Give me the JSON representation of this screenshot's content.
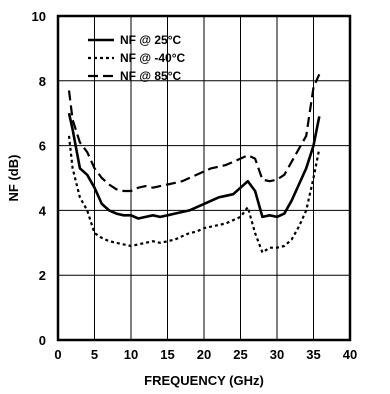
{
  "chart_data": {
    "type": "line",
    "title": "",
    "xlabel": "FREQUENCY (GHz)",
    "ylabel": "NF (dB)",
    "xlim": [
      0,
      40
    ],
    "ylim": [
      0,
      10
    ],
    "xticks": [
      "0",
      "5",
      "10",
      "15",
      "20",
      "25",
      "30",
      "35",
      "40"
    ],
    "yticks": [
      "0",
      "2",
      "4",
      "6",
      "8",
      "10"
    ],
    "grid": true,
    "legend_position": "top-left",
    "series": [
      {
        "name": "NF @ 25°C",
        "style": "solid",
        "color": "#000000",
        "points": [
          [
            1.5,
            7.0
          ],
          [
            2,
            6.5
          ],
          [
            3,
            5.3
          ],
          [
            4,
            5.1
          ],
          [
            5,
            4.7
          ],
          [
            6,
            4.2
          ],
          [
            7,
            4.0
          ],
          [
            8,
            3.9
          ],
          [
            9,
            3.85
          ],
          [
            10,
            3.85
          ],
          [
            11,
            3.75
          ],
          [
            12,
            3.8
          ],
          [
            13,
            3.85
          ],
          [
            14,
            3.8
          ],
          [
            15,
            3.85
          ],
          [
            16,
            3.9
          ],
          [
            17,
            3.95
          ],
          [
            18,
            4.0
          ],
          [
            19,
            4.1
          ],
          [
            20,
            4.2
          ],
          [
            21,
            4.3
          ],
          [
            22,
            4.4
          ],
          [
            23,
            4.45
          ],
          [
            24,
            4.5
          ],
          [
            25,
            4.7
          ],
          [
            26,
            4.9
          ],
          [
            27,
            4.6
          ],
          [
            28,
            3.8
          ],
          [
            29,
            3.85
          ],
          [
            30,
            3.8
          ],
          [
            31,
            3.9
          ],
          [
            32,
            4.3
          ],
          [
            33,
            4.8
          ],
          [
            34,
            5.3
          ],
          [
            35,
            6.0
          ],
          [
            35.8,
            6.9
          ]
        ]
      },
      {
        "name": "NF @ -40°C",
        "style": "dotted",
        "color": "#000000",
        "points": [
          [
            1.5,
            6.3
          ],
          [
            2,
            5.3
          ],
          [
            3,
            4.4
          ],
          [
            4,
            4.0
          ],
          [
            5,
            3.3
          ],
          [
            6,
            3.15
          ],
          [
            7,
            3.05
          ],
          [
            8,
            3.0
          ],
          [
            9,
            2.95
          ],
          [
            10,
            2.9
          ],
          [
            11,
            2.95
          ],
          [
            12,
            3.0
          ],
          [
            13,
            3.05
          ],
          [
            14,
            3.0
          ],
          [
            15,
            3.05
          ],
          [
            16,
            3.1
          ],
          [
            17,
            3.2
          ],
          [
            18,
            3.3
          ],
          [
            19,
            3.35
          ],
          [
            20,
            3.45
          ],
          [
            21,
            3.5
          ],
          [
            22,
            3.55
          ],
          [
            23,
            3.6
          ],
          [
            24,
            3.7
          ],
          [
            25,
            3.8
          ],
          [
            26,
            4.1
          ],
          [
            27,
            3.3
          ],
          [
            28,
            2.7
          ],
          [
            29,
            2.85
          ],
          [
            30,
            2.85
          ],
          [
            31,
            2.9
          ],
          [
            32,
            3.1
          ],
          [
            33,
            3.5
          ],
          [
            34,
            4.0
          ],
          [
            35,
            5.0
          ],
          [
            35.8,
            5.9
          ]
        ]
      },
      {
        "name": "NF @ 85°C",
        "style": "dashed",
        "color": "#000000",
        "points": [
          [
            1.5,
            7.7
          ],
          [
            2,
            6.8
          ],
          [
            3,
            6.1
          ],
          [
            4,
            5.8
          ],
          [
            5,
            5.3
          ],
          [
            6,
            5.0
          ],
          [
            7,
            4.8
          ],
          [
            8,
            4.65
          ],
          [
            9,
            4.6
          ],
          [
            10,
            4.6
          ],
          [
            11,
            4.7
          ],
          [
            12,
            4.75
          ],
          [
            13,
            4.7
          ],
          [
            14,
            4.75
          ],
          [
            15,
            4.8
          ],
          [
            16,
            4.85
          ],
          [
            17,
            4.9
          ],
          [
            18,
            5.0
          ],
          [
            19,
            5.1
          ],
          [
            20,
            5.2
          ],
          [
            21,
            5.3
          ],
          [
            22,
            5.35
          ],
          [
            23,
            5.4
          ],
          [
            24,
            5.5
          ],
          [
            25,
            5.6
          ],
          [
            26,
            5.7
          ],
          [
            27,
            5.6
          ],
          [
            28,
            4.95
          ],
          [
            29,
            4.9
          ],
          [
            30,
            4.95
          ],
          [
            31,
            5.1
          ],
          [
            32,
            5.5
          ],
          [
            33,
            5.9
          ],
          [
            34,
            6.3
          ],
          [
            35,
            7.8
          ],
          [
            35.8,
            8.2
          ]
        ]
      }
    ]
  }
}
